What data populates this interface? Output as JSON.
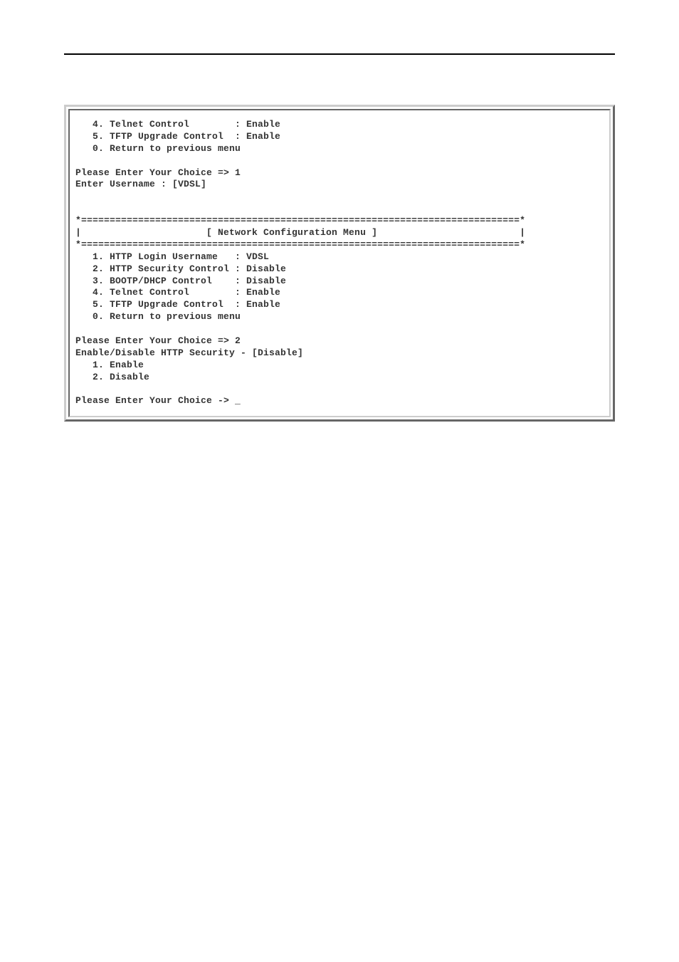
{
  "terminal": {
    "section1": {
      "item4_label": "   4. Telnet Control        : ",
      "item4_value": "Enable",
      "item5_label": "   5. TFTP Upgrade Control  : ",
      "item5_value": "Enable",
      "item0_label": "   0. Return to previous menu"
    },
    "prompt1": {
      "text": "Please Enter Your Choice => ",
      "choice": "1"
    },
    "prompt1_response": {
      "label": "Enter Username : ",
      "value": "[VDSL]"
    },
    "menu_header": {
      "border_top": "*=============================================================================*",
      "title_line": "|                      [ Network Configuration Menu ]                         |",
      "border_bottom": "*=============================================================================*"
    },
    "section2": {
      "item1_label": "   1. HTTP Login Username   : ",
      "item1_value": "VDSL",
      "item2_label": "   2. HTTP Security Control : ",
      "item2_value": "Disable",
      "item3_label": "   3. BOOTP/DHCP Control    : ",
      "item3_value": "Disable",
      "item4_label": "   4. Telnet Control        : ",
      "item4_value": "Enable",
      "item5_label": "   5. TFTP Upgrade Control  : ",
      "item5_value": "Enable",
      "item0_label": "   0. Return to previous menu"
    },
    "prompt2": {
      "text": "Please Enter Your Choice => ",
      "choice": "2"
    },
    "prompt2_response": {
      "label": "Enable/Disable HTTP Security - ",
      "value": "[Disable]"
    },
    "submenu": {
      "item1": "   1. Enable",
      "item2": "   2. Disable"
    },
    "prompt3": {
      "text": "Please Enter Your Choice -> ",
      "cursor": "_"
    }
  },
  "colors": {
    "background": "#ffffff",
    "text": "#333333",
    "border_outer_light": "#cccccc",
    "border_outer_dark": "#666666",
    "header_line": "#000000"
  },
  "fonts": {
    "terminal_family": "Courier New",
    "terminal_size": 13,
    "terminal_weight": "bold"
  }
}
